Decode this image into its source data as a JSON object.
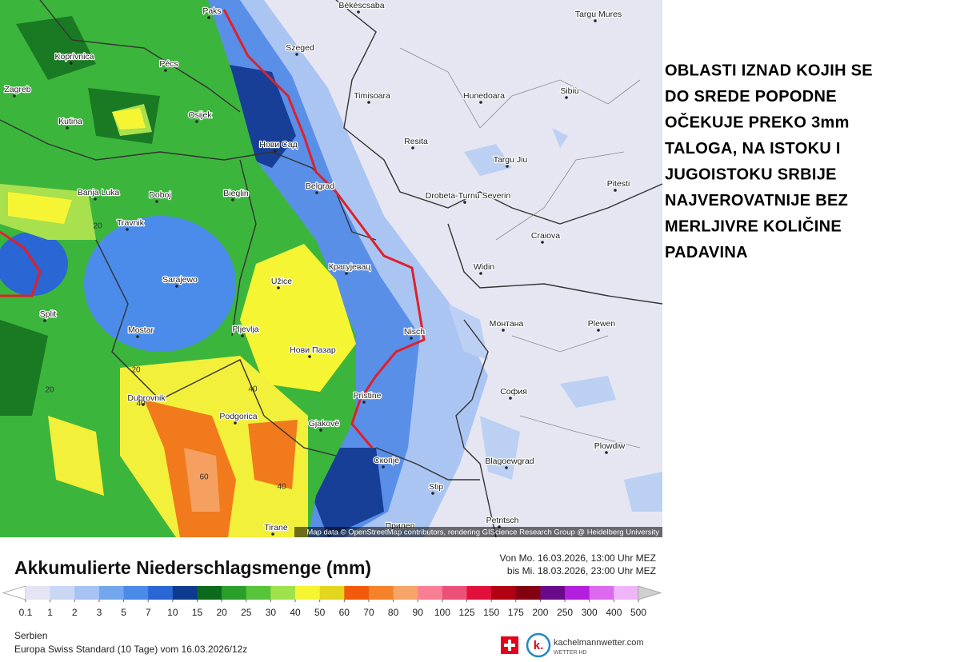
{
  "map": {
    "cities": [
      "Paks",
      "Békéscsaba",
      "Targu Mures",
      "Koprivnica",
      "Pécs",
      "Szeged",
      "Zagreb",
      "Osijek",
      "Timisoara",
      "Hunedoara",
      "Sibiu",
      "Kutina",
      "Нови Сад",
      "Resita",
      "Targu Jiu",
      "Banja Luka",
      "Doboj",
      "Bieglin",
      "Belgrad",
      "Drobeta-Turnu Severin",
      "Pitesti",
      "Travnik",
      "Крагујевац",
      "Craiova",
      "Sarajewo",
      "Užice",
      "Widin",
      "Split",
      "Mostar",
      "Pljevlja",
      "Nisch",
      "Монтана",
      "Plewen",
      "Нови Пазар",
      "Dubrovnik",
      "Pristine",
      "София",
      "Podgorica",
      "Gjakovë",
      "Скопје",
      "Blagoewgrad",
      "Plowdiw",
      "Stip",
      "Tirane",
      "Прилеп",
      "Petritsch"
    ],
    "contour_labels": [
      20,
      20,
      20,
      40,
      40,
      60,
      40
    ],
    "attribution": "Map data © OpenStreetMap contributors, rendering GIScience Research Group @ Heidelberg University"
  },
  "annotation": {
    "lines": [
      "OBLASTI IZNAD KOJIH SE",
      "DO SREDE POPODNE",
      "OČEKUJE PREKO 3mm",
      "TALOGA, NA ISTOKU I",
      "JUGOISTOKU SRBIJE",
      "NAJVEROVATNIJE BEZ",
      "MERLJIVRE KOLIČINE",
      "PADAVINA"
    ]
  },
  "legend": {
    "title": "Akkumulierte Niederschlagsmenge (mm)",
    "period_from": "Von Mo. 16.03.2026, 13:00 Uhr MEZ",
    "period_to": "bis Mi. 18.03.2026, 23:00 Uhr MEZ",
    "ticks": [
      0.1,
      1,
      2,
      3,
      5,
      7,
      10,
      15,
      20,
      25,
      30,
      40,
      50,
      60,
      70,
      80,
      90,
      100,
      125,
      150,
      175,
      200,
      250,
      300,
      400,
      500
    ],
    "colors": [
      "#ffffff",
      "#e4e4f4",
      "#c9d6f4",
      "#a6c3f3",
      "#74a6ee",
      "#4a8ae8",
      "#2a66d4",
      "#0f3b8e",
      "#0c6a1c",
      "#2a9f2a",
      "#58c43a",
      "#9fe34c",
      "#f6f534",
      "#e2d71e",
      "#f05a0a",
      "#f5822a",
      "#f7a468",
      "#f87f93",
      "#ec4f77",
      "#e0103a",
      "#b00012",
      "#820010",
      "#6a0a8a",
      "#b41ede",
      "#dc69ee",
      "#eeb6f6",
      "#f8e6fa",
      "#cfcfcf"
    ],
    "region": "Serbien",
    "model": "Europa Swiss Standard (10 Tage) vom 16.03.2026/12z",
    "brand": "kachelmannwetter.com",
    "brand_sub": "WETTER HD",
    "logo": "k."
  }
}
